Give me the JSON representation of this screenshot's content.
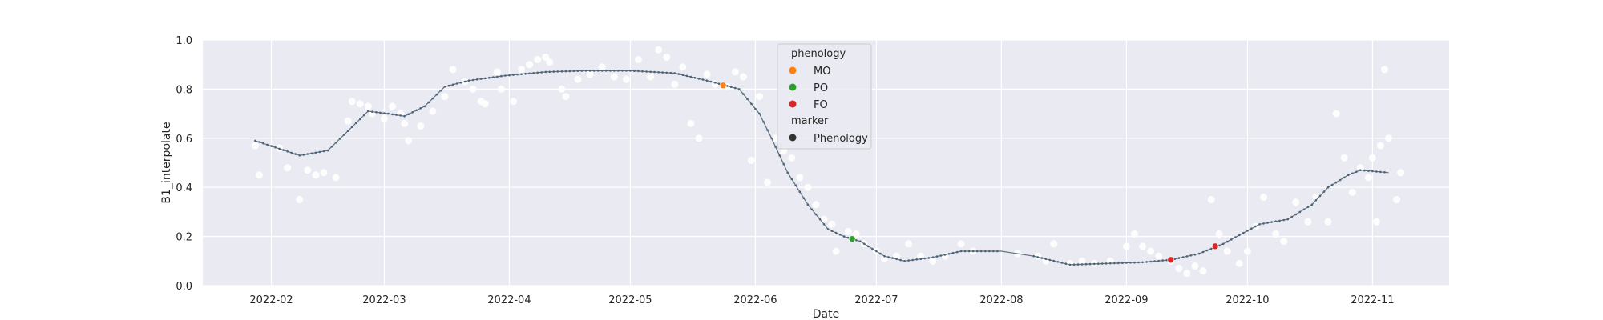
{
  "chart_data": {
    "type": "scatter",
    "xlabel": "Date",
    "ylabel": "B1_interpolate",
    "ylim": [
      0.0,
      1.0
    ],
    "xlim": [
      "2022-01-15",
      "2022-11-20"
    ],
    "grid": true,
    "x_ticks": [
      "2022-02-01",
      "2022-03-01",
      "2022-04-01",
      "2022-05-01",
      "2022-06-01",
      "2022-07-01",
      "2022-08-01",
      "2022-09-01",
      "2022-10-01",
      "2022-11-01"
    ],
    "x_tick_labels": [
      "2022-02",
      "2022-03",
      "2022-04",
      "2022-05",
      "2022-06",
      "2022-07",
      "2022-08",
      "2022-09",
      "2022-10",
      "2022-11"
    ],
    "y_ticks": [
      0.0,
      0.2,
      0.4,
      0.6,
      0.8,
      1.0
    ],
    "y_tick_labels": [
      "0.0",
      "0.2",
      "0.4",
      "0.6",
      "0.8",
      "1.0"
    ],
    "colors": {
      "background": "#eaeaf2",
      "grid": "#ffffff",
      "observed": "#ffffff",
      "curve": "#607080",
      "curve_points": "#4a6478",
      "MO": "#ff7f0e",
      "PO": "#2ca02c",
      "FO": "#d62728",
      "marker": "#333333"
    },
    "legend": {
      "placement": "upper-center",
      "hue_title": "phenology",
      "hue_items": [
        {
          "label": "MO",
          "color": "#ff7f0e"
        },
        {
          "label": "PO",
          "color": "#2ca02c"
        },
        {
          "label": "FO",
          "color": "#d62728"
        }
      ],
      "style_title": "marker",
      "style_items": [
        {
          "label": "Phenology",
          "color": "#333333"
        }
      ]
    },
    "phenology_points": [
      {
        "label": "MO",
        "date": "2022-05-24",
        "value": 0.815
      },
      {
        "label": "PO",
        "date": "2022-06-25",
        "value": 0.19
      },
      {
        "label": "FO",
        "date": "2022-09-12",
        "value": 0.105
      },
      {
        "label": "FO",
        "date": "2022-09-23",
        "value": 0.16
      }
    ],
    "curve": [
      [
        "2022-01-28",
        0.59
      ],
      [
        "2022-02-08",
        0.53
      ],
      [
        "2022-02-15",
        0.55
      ],
      [
        "2022-02-20",
        0.63
      ],
      [
        "2022-02-25",
        0.71
      ],
      [
        "2022-03-02",
        0.7
      ],
      [
        "2022-03-06",
        0.69
      ],
      [
        "2022-03-11",
        0.73
      ],
      [
        "2022-03-16",
        0.81
      ],
      [
        "2022-03-22",
        0.835
      ],
      [
        "2022-03-31",
        0.855
      ],
      [
        "2022-04-10",
        0.87
      ],
      [
        "2022-04-20",
        0.875
      ],
      [
        "2022-05-01",
        0.875
      ],
      [
        "2022-05-12",
        0.865
      ],
      [
        "2022-05-20",
        0.835
      ],
      [
        "2022-05-28",
        0.8
      ],
      [
        "2022-06-02",
        0.7
      ],
      [
        "2022-06-05",
        0.6
      ],
      [
        "2022-06-09",
        0.46
      ],
      [
        "2022-06-14",
        0.33
      ],
      [
        "2022-06-19",
        0.23
      ],
      [
        "2022-06-23",
        0.2
      ],
      [
        "2022-06-27",
        0.18
      ],
      [
        "2022-07-03",
        0.12
      ],
      [
        "2022-07-08",
        0.1
      ],
      [
        "2022-07-15",
        0.115
      ],
      [
        "2022-07-22",
        0.14
      ],
      [
        "2022-08-01",
        0.14
      ],
      [
        "2022-08-09",
        0.12
      ],
      [
        "2022-08-18",
        0.085
      ],
      [
        "2022-08-27",
        0.09
      ],
      [
        "2022-09-05",
        0.095
      ],
      [
        "2022-09-12",
        0.105
      ],
      [
        "2022-09-19",
        0.13
      ],
      [
        "2022-09-25",
        0.17
      ],
      [
        "2022-10-04",
        0.25
      ],
      [
        "2022-10-11",
        0.27
      ],
      [
        "2022-10-17",
        0.33
      ],
      [
        "2022-10-21",
        0.4
      ],
      [
        "2022-10-26",
        0.45
      ],
      [
        "2022-10-29",
        0.47
      ],
      [
        "2022-11-05",
        0.46
      ]
    ],
    "observed": [
      [
        "2022-01-28",
        0.57
      ],
      [
        "2022-01-29",
        0.45
      ],
      [
        "2022-02-03",
        0.56
      ],
      [
        "2022-02-05",
        0.48
      ],
      [
        "2022-02-08",
        0.35
      ],
      [
        "2022-02-10",
        0.47
      ],
      [
        "2022-02-12",
        0.45
      ],
      [
        "2022-02-14",
        0.46
      ],
      [
        "2022-02-17",
        0.44
      ],
      [
        "2022-02-20",
        0.67
      ],
      [
        "2022-02-21",
        0.75
      ],
      [
        "2022-02-23",
        0.74
      ],
      [
        "2022-02-25",
        0.73
      ],
      [
        "2022-02-26",
        0.7
      ],
      [
        "2022-03-01",
        0.68
      ],
      [
        "2022-03-03",
        0.73
      ],
      [
        "2022-03-05",
        0.7
      ],
      [
        "2022-03-06",
        0.66
      ],
      [
        "2022-03-07",
        0.59
      ],
      [
        "2022-03-10",
        0.65
      ],
      [
        "2022-03-13",
        0.71
      ],
      [
        "2022-03-16",
        0.77
      ],
      [
        "2022-03-18",
        0.88
      ],
      [
        "2022-03-21",
        0.83
      ],
      [
        "2022-03-23",
        0.8
      ],
      [
        "2022-03-25",
        0.75
      ],
      [
        "2022-03-26",
        0.74
      ],
      [
        "2022-03-29",
        0.87
      ],
      [
        "2022-03-30",
        0.8
      ],
      [
        "2022-04-02",
        0.75
      ],
      [
        "2022-04-04",
        0.88
      ],
      [
        "2022-04-06",
        0.9
      ],
      [
        "2022-04-08",
        0.92
      ],
      [
        "2022-04-10",
        0.93
      ],
      [
        "2022-04-11",
        0.91
      ],
      [
        "2022-04-14",
        0.8
      ],
      [
        "2022-04-15",
        0.77
      ],
      [
        "2022-04-18",
        0.84
      ],
      [
        "2022-04-21",
        0.86
      ],
      [
        "2022-04-24",
        0.89
      ],
      [
        "2022-04-27",
        0.85
      ],
      [
        "2022-04-30",
        0.84
      ],
      [
        "2022-05-03",
        0.92
      ],
      [
        "2022-05-06",
        0.85
      ],
      [
        "2022-05-08",
        0.96
      ],
      [
        "2022-05-10",
        0.93
      ],
      [
        "2022-05-12",
        0.82
      ],
      [
        "2022-05-14",
        0.89
      ],
      [
        "2022-05-16",
        0.66
      ],
      [
        "2022-05-18",
        0.6
      ],
      [
        "2022-05-20",
        0.86
      ],
      [
        "2022-05-22",
        0.82
      ],
      [
        "2022-05-25",
        0.81
      ],
      [
        "2022-05-27",
        0.87
      ],
      [
        "2022-05-29",
        0.85
      ],
      [
        "2022-05-31",
        0.51
      ],
      [
        "2022-06-02",
        0.77
      ],
      [
        "2022-06-04",
        0.42
      ],
      [
        "2022-06-06",
        0.6
      ],
      [
        "2022-06-08",
        0.55
      ],
      [
        "2022-06-10",
        0.52
      ],
      [
        "2022-06-12",
        0.44
      ],
      [
        "2022-06-14",
        0.4
      ],
      [
        "2022-06-16",
        0.33
      ],
      [
        "2022-06-18",
        0.27
      ],
      [
        "2022-06-20",
        0.25
      ],
      [
        "2022-06-21",
        0.14
      ],
      [
        "2022-06-24",
        0.22
      ],
      [
        "2022-06-26",
        0.21
      ],
      [
        "2022-06-28",
        0.17
      ],
      [
        "2022-07-01",
        0.14
      ],
      [
        "2022-07-03",
        0.11
      ],
      [
        "2022-07-06",
        0.12
      ],
      [
        "2022-07-09",
        0.17
      ],
      [
        "2022-07-12",
        0.12
      ],
      [
        "2022-07-15",
        0.1
      ],
      [
        "2022-07-18",
        0.12
      ],
      [
        "2022-07-22",
        0.17
      ],
      [
        "2022-07-25",
        0.14
      ],
      [
        "2022-08-05",
        0.13
      ],
      [
        "2022-08-10",
        0.12
      ],
      [
        "2022-08-12",
        0.1
      ],
      [
        "2022-08-14",
        0.17
      ],
      [
        "2022-08-18",
        0.09
      ],
      [
        "2022-08-21",
        0.1
      ],
      [
        "2022-08-24",
        0.09
      ],
      [
        "2022-08-28",
        0.1
      ],
      [
        "2022-09-01",
        0.16
      ],
      [
        "2022-09-03",
        0.21
      ],
      [
        "2022-09-05",
        0.16
      ],
      [
        "2022-09-07",
        0.14
      ],
      [
        "2022-09-09",
        0.12
      ],
      [
        "2022-09-12",
        0.1
      ],
      [
        "2022-09-14",
        0.07
      ],
      [
        "2022-09-16",
        0.05
      ],
      [
        "2022-09-18",
        0.08
      ],
      [
        "2022-09-20",
        0.06
      ],
      [
        "2022-09-22",
        0.35
      ],
      [
        "2022-09-24",
        0.21
      ],
      [
        "2022-09-26",
        0.14
      ],
      [
        "2022-09-29",
        0.09
      ],
      [
        "2022-10-01",
        0.14
      ],
      [
        "2022-10-03",
        0.24
      ],
      [
        "2022-10-05",
        0.36
      ],
      [
        "2022-10-08",
        0.21
      ],
      [
        "2022-10-10",
        0.18
      ],
      [
        "2022-10-13",
        0.34
      ],
      [
        "2022-10-16",
        0.26
      ],
      [
        "2022-10-18",
        0.36
      ],
      [
        "2022-10-21",
        0.26
      ],
      [
        "2022-10-23",
        0.7
      ],
      [
        "2022-10-25",
        0.52
      ],
      [
        "2022-10-27",
        0.38
      ],
      [
        "2022-10-29",
        0.48
      ],
      [
        "2022-10-31",
        0.44
      ],
      [
        "2022-11-01",
        0.52
      ],
      [
        "2022-11-02",
        0.26
      ],
      [
        "2022-11-03",
        0.57
      ],
      [
        "2022-11-04",
        0.88
      ],
      [
        "2022-11-05",
        0.6
      ],
      [
        "2022-11-07",
        0.35
      ],
      [
        "2022-11-08",
        0.46
      ]
    ]
  }
}
